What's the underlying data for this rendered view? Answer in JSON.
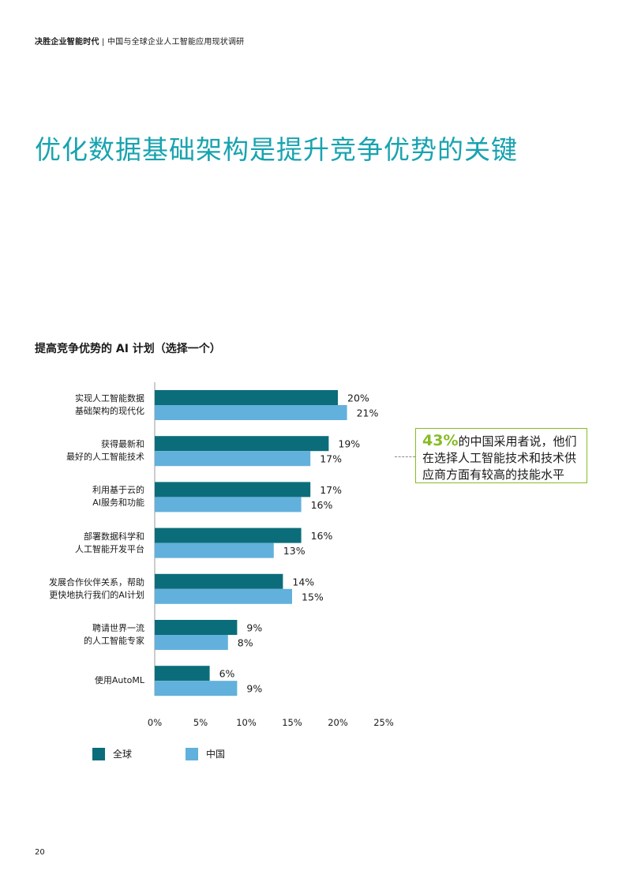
{
  "header": {
    "bold": "决胜企业智能时代",
    "separator": "|",
    "rest": "中国与全球企业人工智能应用现状调研"
  },
  "title": "优化数据基础架构是提升竞争优势的关键",
  "chart_data": {
    "type": "bar",
    "orientation": "horizontal",
    "title": "提高竞争优势的 AI 计划（选择一个）",
    "categories": [
      [
        "实现人工智能数据",
        "基础架构的现代化"
      ],
      [
        "获得最新和",
        "最好的人工智能技术"
      ],
      [
        "利用基于云的",
        "AI服务和功能"
      ],
      [
        "部署数据科学和",
        "人工智能开发平台"
      ],
      [
        "发展合作伙伴关系，帮助",
        "更快地执行我们的AI计划"
      ],
      [
        "聘请世界一流",
        "的人工智能专家"
      ],
      [
        "使用AutoML"
      ]
    ],
    "series": [
      {
        "name": "全球",
        "color": "#0b6d7a",
        "values": [
          20,
          19,
          17,
          16,
          14,
          9,
          6
        ]
      },
      {
        "name": "中国",
        "color": "#62b0dc",
        "values": [
          21,
          17,
          16,
          13,
          15,
          8,
          9
        ]
      }
    ],
    "value_labels": [
      [
        "20%",
        "19%",
        "17%",
        "16%",
        "14%",
        "9%",
        "6%"
      ],
      [
        "21%",
        "17%",
        "16%",
        "13%",
        "15%",
        "8%",
        "9%"
      ]
    ],
    "xlim": [
      0,
      25
    ],
    "xticks": [
      "0%",
      "5%",
      "10%",
      "15%",
      "20%",
      "25%"
    ],
    "grid": false,
    "legend_position": "bottom-left"
  },
  "callout": {
    "highlight": "43%",
    "text": "的中国采用者说，他们在选择人工智能技术和技术供应商方面有较高的技能水平"
  },
  "page_number": "20"
}
